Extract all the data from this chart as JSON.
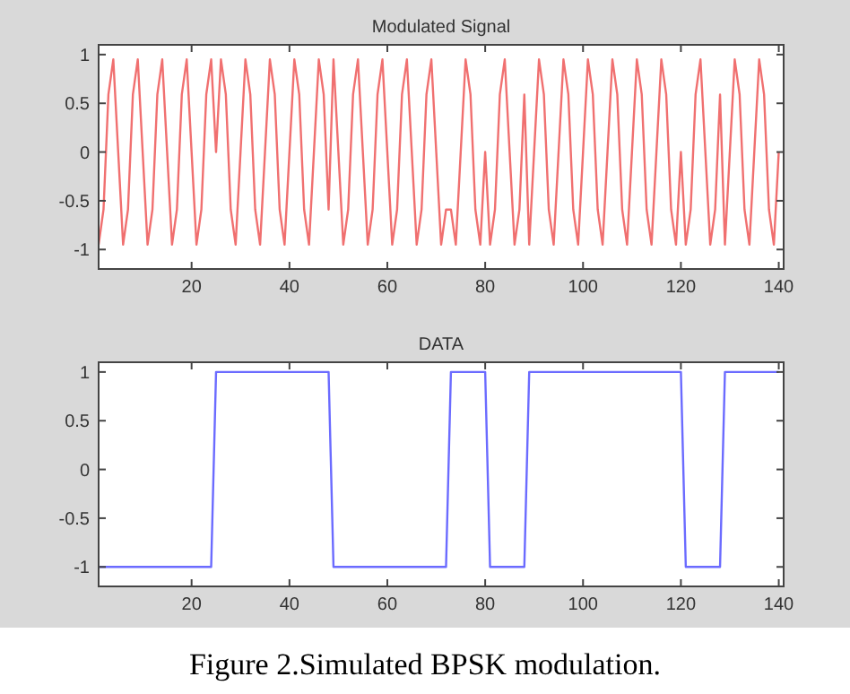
{
  "chart_data": [
    {
      "type": "line",
      "title": "Modulated Signal",
      "xlim": [
        1,
        141
      ],
      "xticks": [
        20,
        40,
        60,
        80,
        100,
        120,
        140
      ],
      "ylim": [
        -1.2,
        1.1
      ],
      "yticks": [
        -1,
        -0.5,
        0,
        0.5,
        1
      ],
      "x": [
        1,
        2,
        3,
        4,
        5,
        6,
        7,
        8,
        9,
        10,
        11,
        12,
        13,
        14,
        15,
        16,
        17,
        18,
        19,
        20,
        21,
        22,
        23,
        24,
        25,
        26,
        27,
        28,
        29,
        30,
        31,
        32,
        33,
        34,
        35,
        36,
        37,
        38,
        39,
        40,
        41,
        42,
        43,
        44,
        45,
        46,
        47,
        48,
        49,
        50,
        51,
        52,
        53,
        54,
        55,
        56,
        57,
        58,
        59,
        60,
        61,
        62,
        63,
        64,
        65,
        66,
        67,
        68,
        69,
        70,
        71,
        72,
        73,
        74,
        75,
        76,
        77,
        78,
        79,
        80,
        81,
        82,
        83,
        84,
        85,
        86,
        87,
        88,
        89,
        90,
        91,
        92,
        93,
        94,
        95,
        96,
        97,
        98,
        99,
        100,
        101,
        102,
        103,
        104,
        105,
        106,
        107,
        108,
        109,
        110,
        111,
        112,
        113,
        114,
        115,
        116,
        117,
        118,
        119,
        120,
        121,
        122,
        123,
        124,
        125,
        126,
        127,
        128,
        129,
        130,
        131,
        132,
        133,
        134,
        135,
        136,
        137,
        138,
        139,
        140
      ],
      "series": [
        {
          "color": "#f07070",
          "values": [
            -0.95,
            -0.59,
            0.59,
            0.95,
            0,
            -0.95,
            -0.59,
            0.59,
            0.95,
            0,
            -0.95,
            -0.59,
            0.59,
            0.95,
            0,
            -0.95,
            -0.59,
            0.59,
            0.95,
            0,
            -0.95,
            -0.59,
            0.59,
            0.95,
            0,
            0.95,
            0.59,
            -0.59,
            -0.95,
            0,
            0.95,
            0.59,
            -0.59,
            -0.95,
            0,
            0.95,
            0.59,
            -0.59,
            -0.95,
            0,
            0.95,
            0.59,
            -0.59,
            -0.95,
            0,
            0.95,
            0.59,
            -0.59,
            0.95,
            0,
            -0.95,
            -0.59,
            0.59,
            0.95,
            0,
            -0.95,
            -0.59,
            0.59,
            0.95,
            0,
            -0.95,
            -0.59,
            0.59,
            0.95,
            0,
            -0.95,
            -0.59,
            0.59,
            0.95,
            0,
            -0.95,
            -0.59,
            -0.59,
            -0.95,
            0,
            0.95,
            0.59,
            -0.59,
            -0.95,
            0,
            -0.95,
            -0.59,
            0.59,
            0.95,
            0,
            -0.95,
            -0.59,
            0.59,
            -0.95,
            0,
            0.95,
            0.59,
            -0.59,
            -0.95,
            0,
            0.95,
            0.59,
            -0.59,
            -0.95,
            0,
            0.95,
            0.59,
            -0.59,
            -0.95,
            0,
            0.95,
            0.59,
            -0.59,
            -0.95,
            0,
            0.95,
            0.59,
            -0.59,
            -0.95,
            0,
            0.95,
            0.59,
            -0.59,
            -0.95,
            0,
            -0.95,
            -0.59,
            0.59,
            0.95,
            0,
            -0.95,
            -0.59,
            0.59,
            -0.95,
            0,
            0.95,
            0.59,
            -0.59,
            -0.95,
            0,
            0.95,
            0.59,
            -0.59,
            -0.95,
            0
          ]
        }
      ]
    },
    {
      "type": "line",
      "title": "DATA",
      "xlim": [
        1,
        141
      ],
      "xticks": [
        20,
        40,
        60,
        80,
        100,
        120,
        140
      ],
      "ylim": [
        -1.2,
        1.1
      ],
      "yticks": [
        -1,
        -0.5,
        0,
        0.5,
        1
      ],
      "x": [
        1,
        24,
        25,
        48,
        49,
        72,
        73,
        80,
        81,
        88,
        89,
        120,
        121,
        128,
        129,
        140
      ],
      "series": [
        {
          "color": "#6b6bff",
          "values": [
            -1,
            -1,
            1,
            1,
            -1,
            -1,
            1,
            1,
            -1,
            -1,
            1,
            1,
            -1,
            -1,
            1,
            1
          ]
        }
      ],
      "annotations": [
        "Figure 2.Simulated BPSK modulation."
      ]
    }
  ]
}
